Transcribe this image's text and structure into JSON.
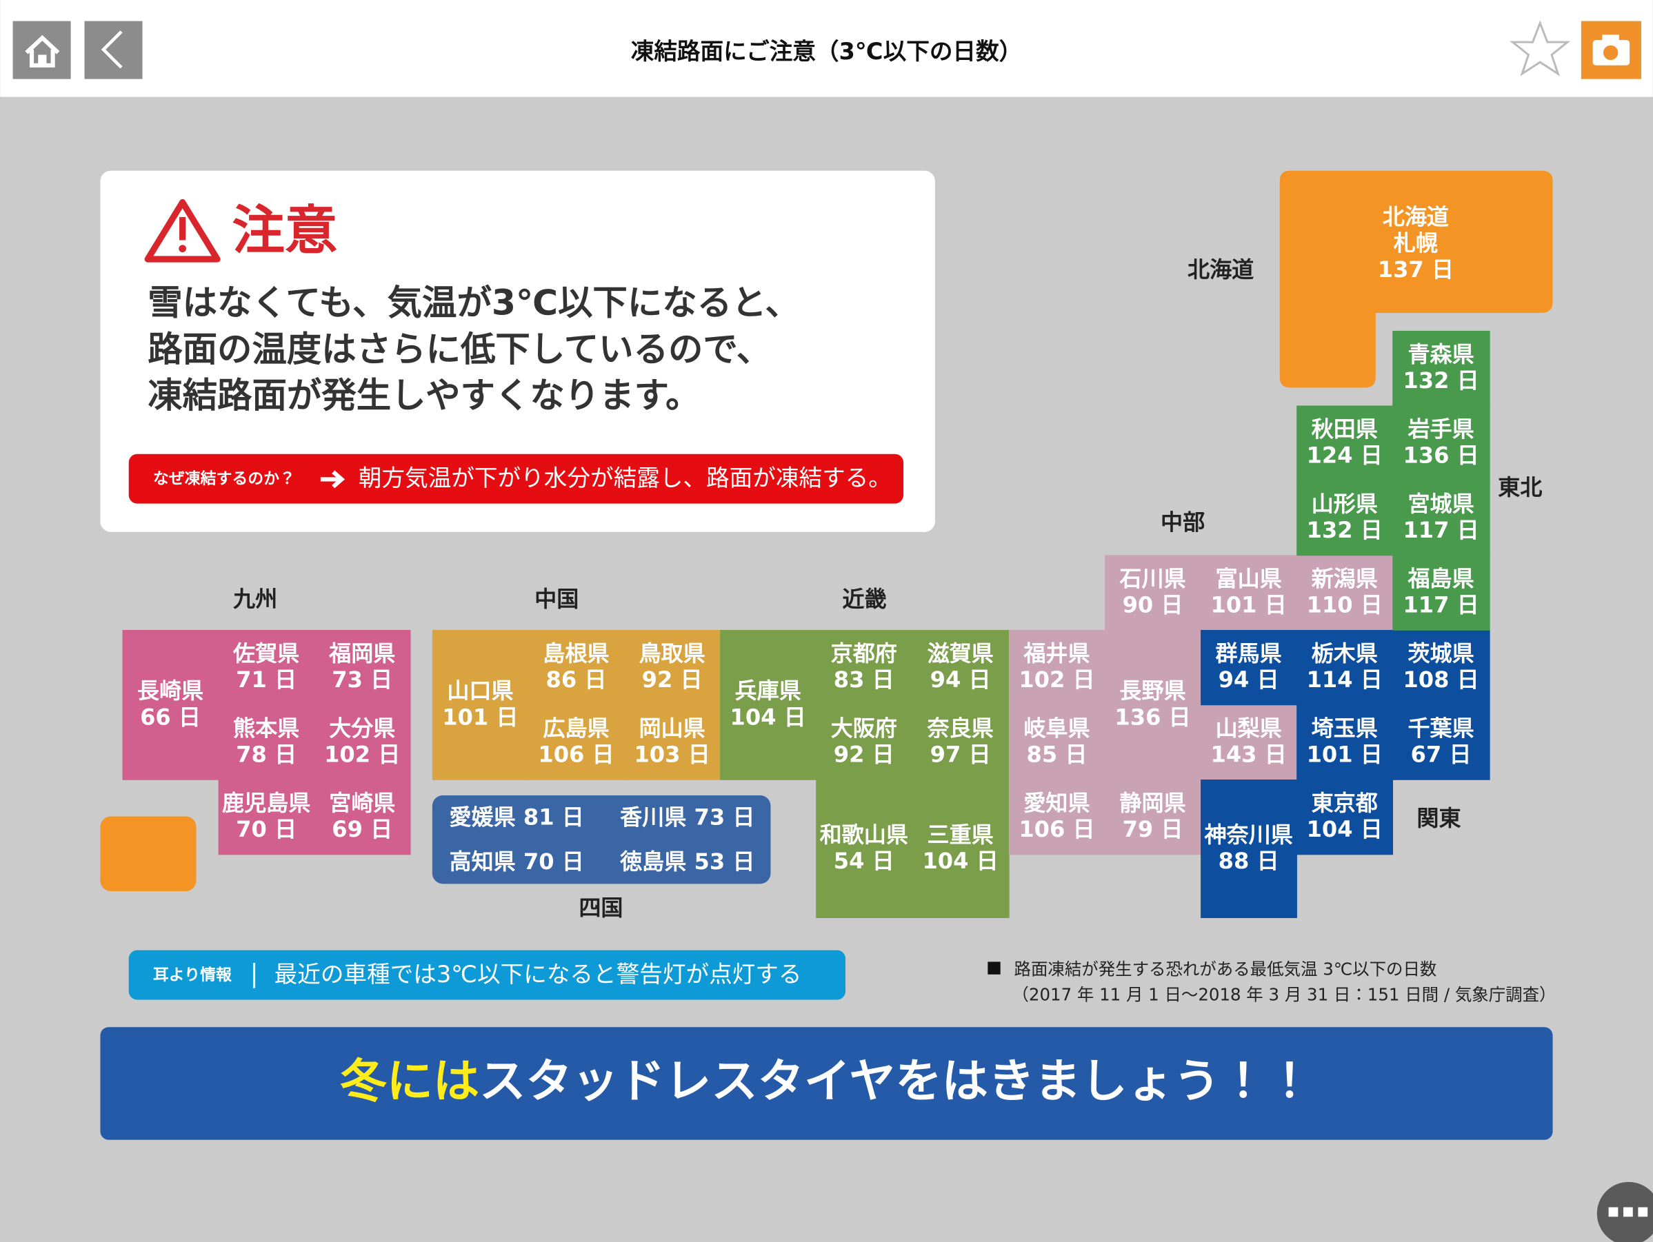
{
  "header": {
    "title": "凍結路面にご注意（3℃以下の日数）"
  },
  "warning": {
    "heading": "注意",
    "lines": [
      "雪はなくても、気温が3℃以下になると、",
      "路面の温度はさらに低下しているので、",
      "凍結路面が発生しやすくなります。"
    ],
    "why_label": "なぜ凍結するのか？",
    "why_text": "朝方気温が下がり水分が結露し、路面が凍結する。"
  },
  "regions": [
    {
      "name": "九州"
    },
    {
      "name": "中国"
    },
    {
      "name": "近畿"
    },
    {
      "name": "中部"
    },
    {
      "name": "東北"
    },
    {
      "name": "北海道"
    },
    {
      "name": "関東"
    },
    {
      "name": "四国"
    }
  ],
  "prefectures": [
    {
      "name": "長崎県",
      "days": "66 日"
    },
    {
      "name": "佐賀県",
      "days": "71 日"
    },
    {
      "name": "福岡県",
      "days": "73 日"
    },
    {
      "name": "熊本県",
      "days": "78 日"
    },
    {
      "name": "大分県",
      "days": "102 日"
    },
    {
      "name": "鹿児島県",
      "days": "70 日"
    },
    {
      "name": "宮崎県",
      "days": "69 日"
    },
    {
      "name": "山口県",
      "days": "101 日"
    },
    {
      "name": "島根県",
      "days": "86 日"
    },
    {
      "name": "鳥取県",
      "days": "92 日"
    },
    {
      "name": "広島県",
      "days": "106 日"
    },
    {
      "name": "岡山県",
      "days": "103 日"
    },
    {
      "name": "兵庫県",
      "days": "104 日"
    },
    {
      "name": "京都府",
      "days": "83 日"
    },
    {
      "name": "滋賀県",
      "days": "94 日"
    },
    {
      "name": "大阪府",
      "days": "92 日"
    },
    {
      "name": "奈良県",
      "days": "97 日"
    },
    {
      "name": "和歌山県",
      "days": "54 日"
    },
    {
      "name": "三重県",
      "days": "104 日"
    },
    {
      "name": "石川県",
      "days": "90 日"
    },
    {
      "name": "富山県",
      "days": "101 日"
    },
    {
      "name": "新潟県",
      "days": "110 日"
    },
    {
      "name": "福井県",
      "days": "102 日"
    },
    {
      "name": "岐阜県",
      "days": "85 日"
    },
    {
      "name": "愛知県",
      "days": "106 日"
    },
    {
      "name": "静岡県",
      "days": "79 日"
    },
    {
      "name": "長野県",
      "days": "136 日"
    },
    {
      "name": "山梨県",
      "days": "143 日"
    },
    {
      "name": "群馬県",
      "days": "94 日"
    },
    {
      "name": "栃木県",
      "days": "114 日"
    },
    {
      "name": "茨城県",
      "days": "108 日"
    },
    {
      "name": "埼玉県",
      "days": "101 日"
    },
    {
      "name": "千葉県",
      "days": "67 日"
    },
    {
      "name": "東京都",
      "days": "104 日"
    },
    {
      "name": "神奈川県",
      "days": "88 日"
    },
    {
      "name": "青森県",
      "days": "132 日"
    },
    {
      "name": "秋田県",
      "days": "124 日"
    },
    {
      "name": "岩手県",
      "days": "136 日"
    },
    {
      "name": "山形県",
      "days": "132 日"
    },
    {
      "name": "宮城県",
      "days": "117 日"
    },
    {
      "name": "福島県",
      "days": "117 日"
    }
  ],
  "hokkaido": {
    "name": "北海道",
    "city": "札幌",
    "days": "137 日"
  },
  "shikoku": [
    {
      "name": "愛媛県",
      "days": "81 日"
    },
    {
      "name": "香川県",
      "days": "73 日"
    },
    {
      "name": "高知県",
      "days": "70 日"
    },
    {
      "name": "徳島県",
      "days": "53 日"
    }
  ],
  "tip": {
    "label": "耳より情報",
    "text": "最近の車種では3℃以下になると警告灯が点灯する"
  },
  "note": {
    "line1": "路面凍結が発生する恐れがある最低気温 3℃以下の日数",
    "line2": "（2017 年 11 月 1 日〜2018 年 3 月 31 日：151 日間 / 気象庁調査）"
  },
  "banner": {
    "highlight": "冬には",
    "text": "スタッドレスタイヤをはきましょう！！"
  }
}
